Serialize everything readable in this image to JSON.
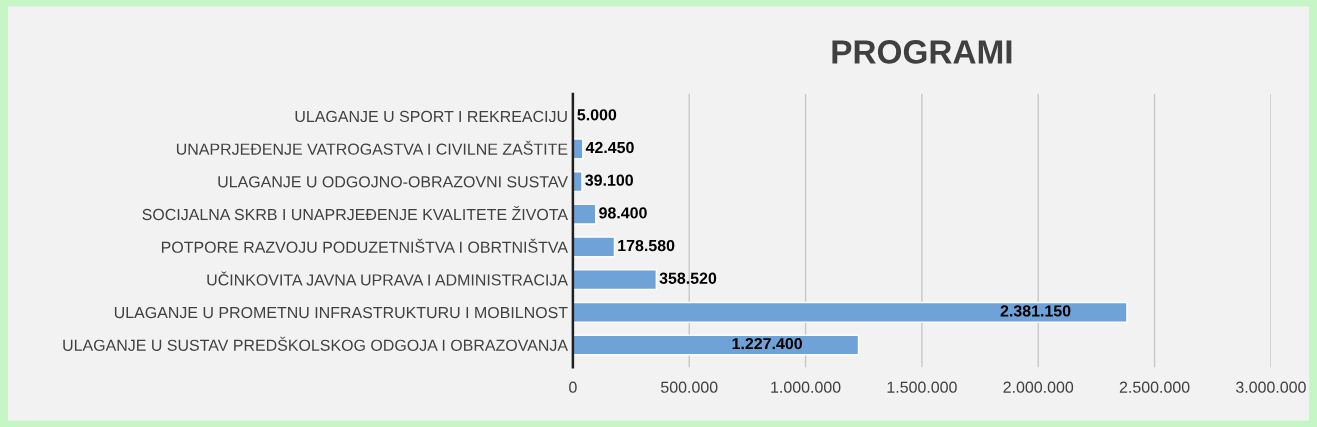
{
  "chart_data": {
    "type": "bar",
    "orientation": "horizontal",
    "title": "PROGRAMI",
    "categories": [
      "ULAGANJE U SPORT I REKREACIJU",
      "UNAPRJEĐENJE VATROGASTVA I CIVILNE ZAŠTITE",
      "ULAGANJE U ODGOJNO-OBRAZOVNI SUSTAV",
      "SOCIJALNA SKRB I UNAPRJEĐENJE KVALITETE ŽIVOTA",
      "POTPORE RAZVOJU PODUZETNIŠTVA I OBRTNIŠTVA",
      "UČINKOVITA JAVNA UPRAVA I ADMINISTRACIJA",
      "ULAGANJE U PROMETNU INFRASTRUKTURU I MOBILNOST",
      "ULAGANJE U SUSTAV PREDŠKOLSKOG ODGOJA I OBRAZOVANJA"
    ],
    "values": [
      5000,
      42450,
      39100,
      98400,
      178580,
      358520,
      2381150,
      1227400
    ],
    "value_labels": [
      "5.000",
      "42.450",
      "39.100",
      "98.400",
      "178.580",
      "358.520",
      "2.381.150",
      "1.227.400"
    ],
    "color": "#6fa3d8",
    "xlim": [
      0,
      3000000
    ],
    "xticks": [
      0,
      {
        "value": 500000,
        "label": "500.000"
      },
      {
        "value": 1000000,
        "label": "1.000.000"
      },
      {
        "value": 1500000,
        "label": "1.500.000"
      },
      {
        "value": 2000000,
        "label": "2.000.000"
      },
      {
        "value": 2500000,
        "label": "2.500.000"
      },
      {
        "value": 3000000,
        "label": "3.000.000"
      }
    ],
    "grid": "x",
    "legend": false
  }
}
